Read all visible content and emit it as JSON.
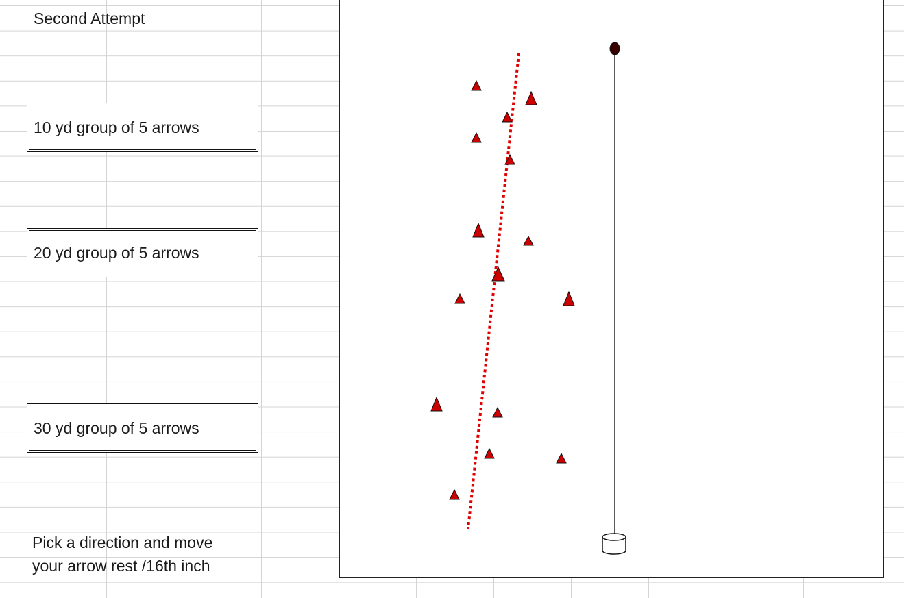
{
  "heading": "Second Attempt",
  "groups": [
    {
      "label": "10 yd group of 5 arrows"
    },
    {
      "label": "20 yd group of 5 arrows"
    },
    {
      "label": "30 yd group of 5 arrows"
    }
  ],
  "instruction": {
    "line1": "Pick a direction and move",
    "line2": "your arrow rest /16th inch"
  },
  "colors": {
    "marker_fill": "#cc0000",
    "trend_line": "#e00000",
    "plumb_line": "#222222",
    "plumb_bob": "#3a0000"
  },
  "icons": {
    "plumb_bob": "plumb-bob-icon",
    "base": "cylinder-base-icon",
    "marker": "triangle-marker-icon"
  }
}
